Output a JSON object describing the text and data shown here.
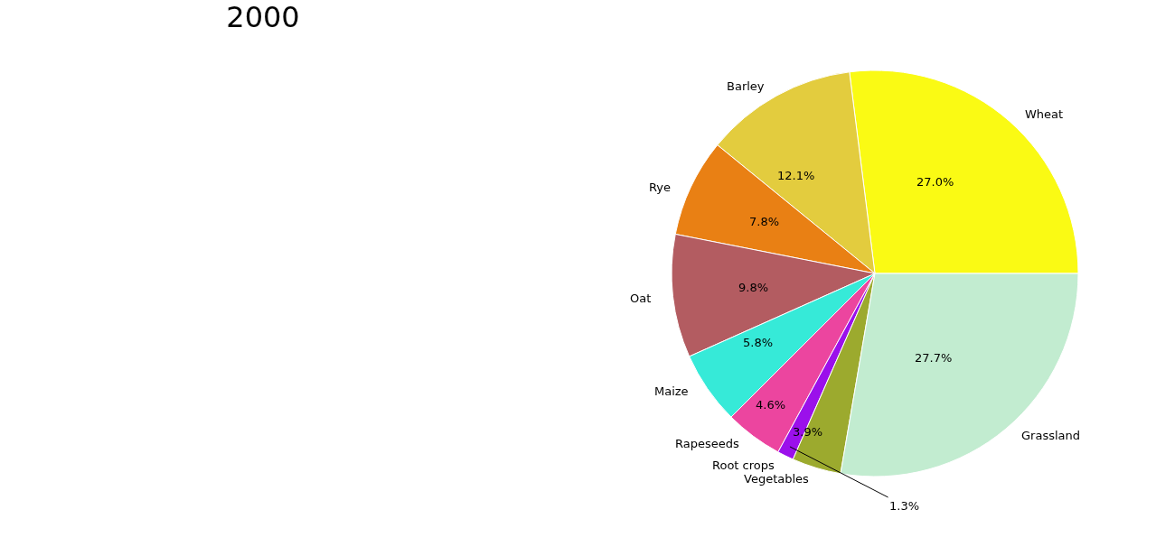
{
  "chart_data": {
    "type": "pie",
    "title": "2000",
    "categories": [
      "Wheat",
      "Barley",
      "Rye",
      "Oat",
      "Maize",
      "Rapeseeds",
      "Root crops",
      "Vegetables",
      "Grassland"
    ],
    "values": [
      27.0,
      12.1,
      7.8,
      9.8,
      5.8,
      4.6,
      1.3,
      3.9,
      27.7
    ],
    "colors": [
      "#fafa14",
      "#e3cc3e",
      "#e98014",
      "#b35c61",
      "#36ead8",
      "#ec459f",
      "#9b10eb",
      "#9caa2e",
      "#c2ecd0"
    ],
    "value_labels": [
      "27.0%",
      "12.1%",
      "7.8%",
      "9.8%",
      "5.8%",
      "4.6%",
      "1.3%",
      "3.9%",
      "27.7%"
    ],
    "legend": false
  }
}
